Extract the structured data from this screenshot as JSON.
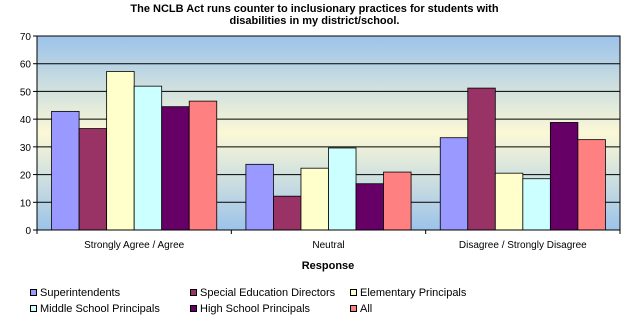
{
  "chart_data": {
    "type": "bar",
    "title_lines": [
      "The NCLB Act runs counter to inclusionary practices for students with",
      "disabilities in my district/school."
    ],
    "xlabel": "Response",
    "ylabel": "",
    "ylim": [
      0,
      70
    ],
    "yticks": [
      0,
      10,
      20,
      30,
      40,
      50,
      60,
      70
    ],
    "grid": true,
    "legend_position": "bottom",
    "categories": [
      "Strongly Agree / Agree",
      "Neutral",
      "Disagree / Strongly Disagree"
    ],
    "series": [
      {
        "name": "Superintendents",
        "color": "#9999ff",
        "values": [
          42.8,
          23.7,
          33.3
        ]
      },
      {
        "name": "Special Education Directors",
        "color": "#993366",
        "values": [
          36.6,
          12.2,
          51.2
        ]
      },
      {
        "name": "Elementary Principals",
        "color": "#ffffcc",
        "values": [
          57.2,
          22.3,
          20.5
        ]
      },
      {
        "name": "Middle School Principals",
        "color": "#ccffff",
        "values": [
          51.9,
          29.6,
          18.5
        ]
      },
      {
        "name": "High School Principals",
        "color": "#660066",
        "values": [
          44.5,
          16.7,
          38.8
        ]
      },
      {
        "name": "All",
        "color": "#ff8080",
        "values": [
          46.5,
          20.9,
          32.6
        ]
      }
    ]
  }
}
